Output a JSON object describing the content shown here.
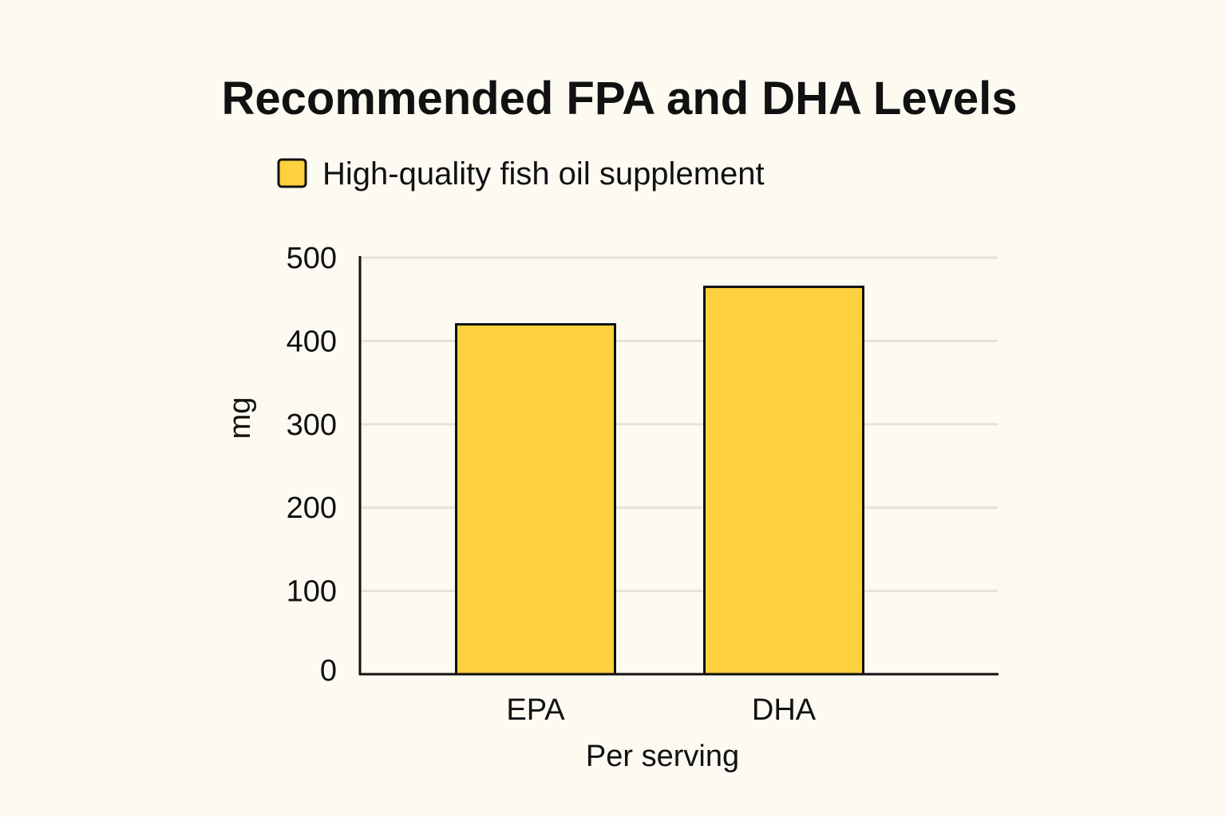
{
  "chart_data": {
    "type": "bar",
    "title": "Recommended FPA and DHA Levels",
    "xlabel": "Per serving",
    "ylabel": "mg",
    "categories": [
      "EPA",
      "DHA"
    ],
    "series": [
      {
        "name": "High-quality fish oil supplement",
        "values": [
          420,
          465
        ]
      }
    ],
    "ylim": [
      0,
      500
    ],
    "yticks": [
      0,
      100,
      200,
      300,
      400,
      500
    ],
    "grid": true,
    "legend": "top-left",
    "colors": {
      "bar": "#fed13f",
      "stroke": "#111111",
      "grid": "#e4e2dc",
      "background": "#fdfaf2"
    }
  }
}
